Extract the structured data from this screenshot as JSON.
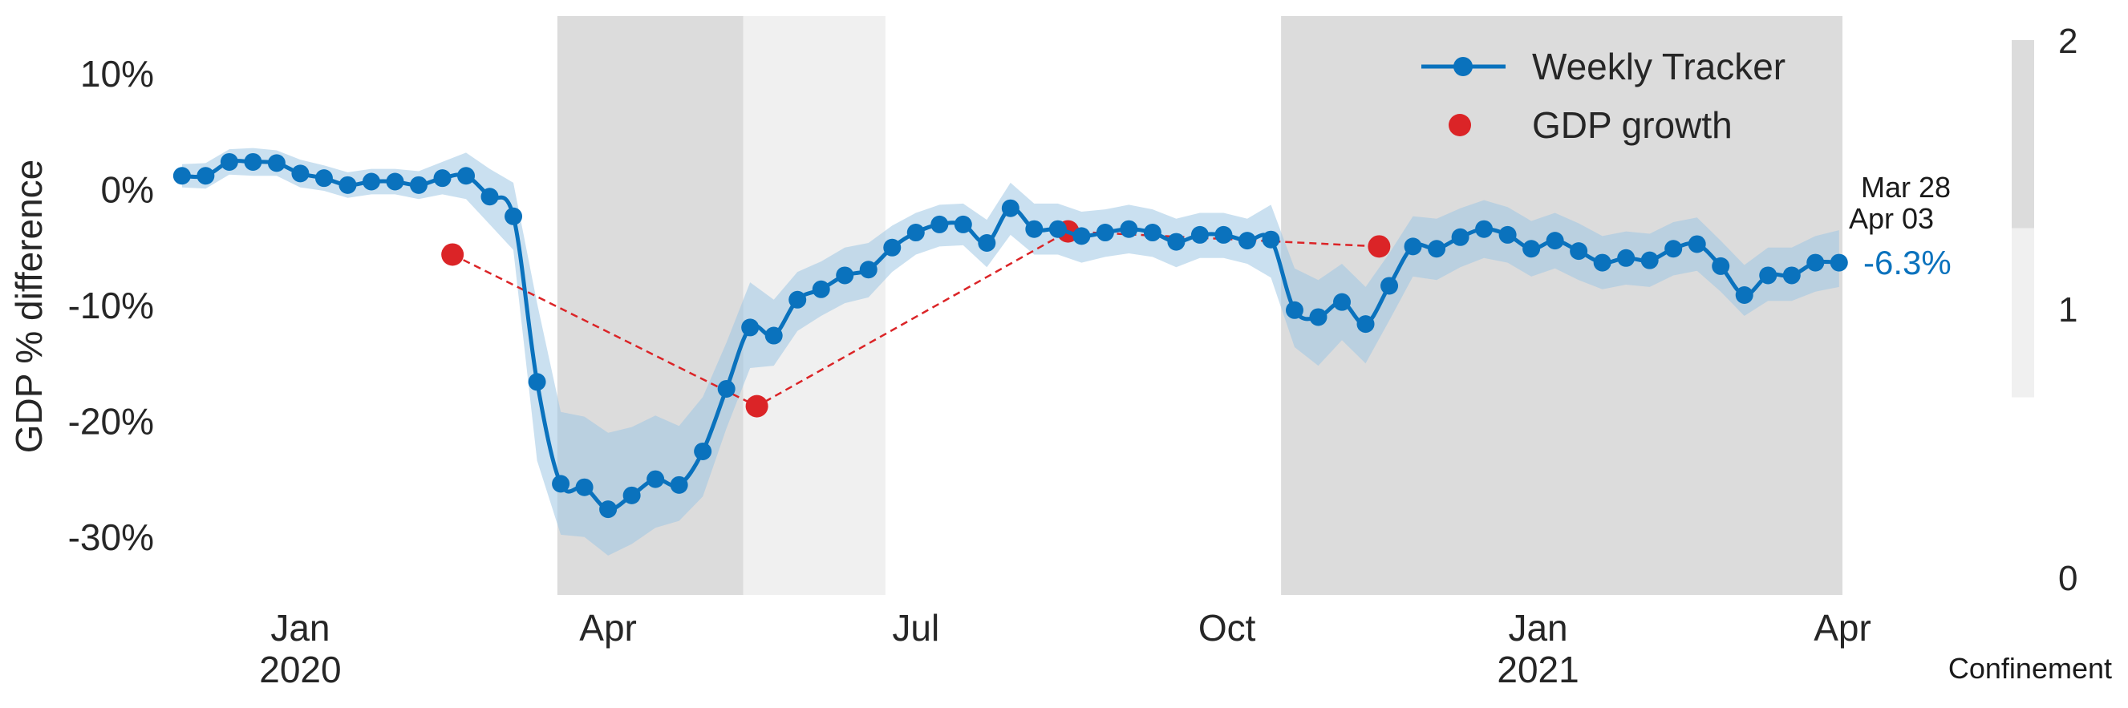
{
  "chart_data": {
    "type": "line",
    "title": "",
    "ylabel": "GDP % difference",
    "xlabel": "",
    "ylim": [
      -35,
      15
    ],
    "xlim": [
      "2019-11-23",
      "2021-04-01"
    ],
    "yticks": [
      10,
      0,
      -10,
      -20,
      -30
    ],
    "ytick_labels": [
      "10%",
      "0%",
      "-10%",
      "-20%",
      "-30%"
    ],
    "xticks": [
      {
        "date": "2020-01-01",
        "label": "Jan",
        "year": "2020"
      },
      {
        "date": "2020-04-01",
        "label": "Apr",
        "year": ""
      },
      {
        "date": "2020-07-01",
        "label": "Jul",
        "year": ""
      },
      {
        "date": "2020-10-01",
        "label": "Oct",
        "year": ""
      },
      {
        "date": "2021-01-01",
        "label": "Jan",
        "year": "2021"
      },
      {
        "date": "2021-04-01",
        "label": "Apr",
        "year": ""
      }
    ],
    "grid": false,
    "legend": {
      "position": "top-right",
      "entries": [
        {
          "name": "Weekly Tracker",
          "color": "#0a72bd",
          "marker": "line-circle"
        },
        {
          "name": "GDP growth",
          "color": "#db2427",
          "marker": "circle"
        }
      ]
    },
    "confinement": [
      {
        "start": "2020-03-17",
        "end": "2020-05-11",
        "level": 2
      },
      {
        "start": "2020-05-11",
        "end": "2020-06-22",
        "level": 1
      },
      {
        "start": "2020-10-17",
        "end": "2021-04-01",
        "level": 2
      }
    ],
    "confinement_colorbar": {
      "label": "Confinement",
      "ticks": [
        0,
        1,
        2
      ],
      "colors": {
        "1": "#f0f0f0",
        "2": "#dcdcdc"
      }
    },
    "series": [
      {
        "name": "Weekly Tracker",
        "color": "#0a72bd",
        "band_color": "#9fc6e3",
        "x": [
          "2019-11-27",
          "2019-12-04",
          "2019-12-11",
          "2019-12-18",
          "2019-12-25",
          "2020-01-01",
          "2020-01-08",
          "2020-01-15",
          "2020-01-22",
          "2020-01-29",
          "2020-02-05",
          "2020-02-12",
          "2020-02-19",
          "2020-02-26",
          "2020-03-04",
          "2020-03-11",
          "2020-03-18",
          "2020-03-25",
          "2020-04-01",
          "2020-04-08",
          "2020-04-15",
          "2020-04-22",
          "2020-04-29",
          "2020-05-06",
          "2020-05-13",
          "2020-05-20",
          "2020-05-27",
          "2020-06-03",
          "2020-06-10",
          "2020-06-17",
          "2020-06-24",
          "2020-07-01",
          "2020-07-08",
          "2020-07-15",
          "2020-07-22",
          "2020-07-29",
          "2020-08-05",
          "2020-08-12",
          "2020-08-19",
          "2020-08-26",
          "2020-09-02",
          "2020-09-09",
          "2020-09-16",
          "2020-09-23",
          "2020-09-30",
          "2020-10-07",
          "2020-10-14",
          "2020-10-21",
          "2020-10-28",
          "2020-11-04",
          "2020-11-11",
          "2020-11-18",
          "2020-11-25",
          "2020-12-02",
          "2020-12-09",
          "2020-12-16",
          "2020-12-23",
          "2020-12-30",
          "2021-01-06",
          "2021-01-13",
          "2021-01-20",
          "2021-01-27",
          "2021-02-03",
          "2021-02-10",
          "2021-02-17",
          "2021-02-24",
          "2021-03-03",
          "2021-03-10",
          "2021-03-17",
          "2021-03-24",
          "2021-03-31"
        ],
        "values": [
          1.2,
          1.2,
          2.4,
          2.4,
          2.3,
          1.4,
          1.0,
          0.4,
          0.7,
          0.7,
          0.4,
          1.0,
          1.2,
          -0.6,
          -2.3,
          -16.6,
          -25.4,
          -25.7,
          -27.6,
          -26.4,
          -25.0,
          -25.5,
          -22.6,
          -17.2,
          -11.9,
          -12.6,
          -9.5,
          -8.6,
          -7.4,
          -6.9,
          -5.0,
          -3.7,
          -3.0,
          -3.0,
          -4.6,
          -1.6,
          -3.4,
          -3.4,
          -4.0,
          -3.7,
          -3.4,
          -3.7,
          -4.5,
          -3.9,
          -3.9,
          -4.4,
          -4.3,
          -10.4,
          -11.0,
          -9.7,
          -11.6,
          -8.3,
          -4.9,
          -5.1,
          -4.1,
          -3.4,
          -3.9,
          -5.1,
          -4.4,
          -5.3,
          -6.3,
          -5.9,
          -6.1,
          -5.1,
          -4.7,
          -6.6,
          -9.1,
          -7.4,
          -7.4,
          -6.3,
          -6.3
        ],
        "upper": [
          2.2,
          2.3,
          3.5,
          3.6,
          3.4,
          2.6,
          2.1,
          1.5,
          1.8,
          1.8,
          1.6,
          2.4,
          3.2,
          1.8,
          0.6,
          -9.8,
          -19.2,
          -19.6,
          -21.0,
          -20.5,
          -19.5,
          -20.4,
          -17.9,
          -13.2,
          -8.0,
          -9.5,
          -7.1,
          -6.2,
          -5.0,
          -4.6,
          -3.1,
          -2.0,
          -1.3,
          -1.2,
          -2.6,
          0.6,
          -1.2,
          -1.2,
          -1.9,
          -1.7,
          -1.3,
          -1.7,
          -2.5,
          -2.0,
          -2.0,
          -2.5,
          -1.3,
          -6.8,
          -7.8,
          -6.4,
          -8.4,
          -5.5,
          -2.3,
          -2.5,
          -1.6,
          -0.9,
          -1.5,
          -2.7,
          -2.0,
          -2.9,
          -4.0,
          -3.6,
          -3.8,
          -2.8,
          -2.4,
          -4.4,
          -6.5,
          -5.0,
          -5.0,
          -4.0,
          -3.5
        ],
        "lower": [
          0.2,
          0.1,
          1.3,
          1.2,
          1.2,
          0.2,
          -0.1,
          -0.7,
          -0.4,
          -0.4,
          -0.8,
          -0.4,
          -0.8,
          -3.0,
          -5.2,
          -23.4,
          -29.8,
          -30.0,
          -31.6,
          -30.6,
          -29.2,
          -28.6,
          -26.5,
          -20.6,
          -15.4,
          -15.2,
          -12.2,
          -10.9,
          -9.8,
          -9.3,
          -7.1,
          -5.6,
          -4.9,
          -4.8,
          -6.7,
          -3.9,
          -5.6,
          -5.6,
          -6.3,
          -5.8,
          -5.5,
          -5.8,
          -6.7,
          -5.9,
          -5.9,
          -6.4,
          -7.6,
          -13.6,
          -15.2,
          -13.0,
          -15.0,
          -11.3,
          -7.5,
          -7.8,
          -6.7,
          -5.9,
          -6.3,
          -7.5,
          -6.8,
          -7.8,
          -8.6,
          -8.2,
          -8.4,
          -7.4,
          -7.0,
          -8.8,
          -10.9,
          -9.6,
          -9.6,
          -8.8,
          -8.4
        ]
      },
      {
        "name": "GDP growth",
        "color": "#db2427",
        "style": "dashed-connected-points",
        "x": [
          "2020-02-15",
          "2020-05-15",
          "2020-08-15",
          "2020-11-15"
        ],
        "values": [
          -5.6,
          -18.7,
          -3.6,
          -4.9
        ]
      }
    ],
    "annotations": [
      {
        "text": "Mar 28",
        "type": "date-range"
      },
      {
        "text": "Apr 03",
        "type": "date-range"
      },
      {
        "text": "-6.3%",
        "type": "last-value",
        "color": "#0a72bd"
      }
    ]
  }
}
